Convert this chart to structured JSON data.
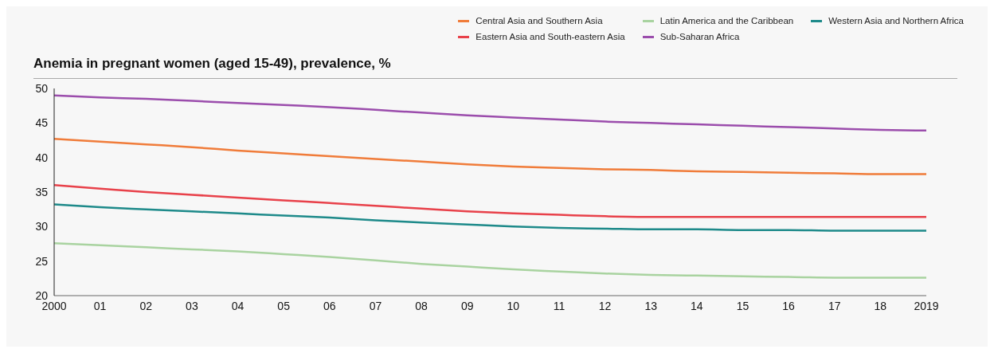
{
  "chart_data": {
    "type": "line",
    "title": "Anemia in pregnant women (aged 15-49), prevalence, %",
    "categories": [
      "2000",
      "01",
      "02",
      "03",
      "04",
      "05",
      "06",
      "07",
      "08",
      "09",
      "10",
      "11",
      "12",
      "13",
      "14",
      "15",
      "16",
      "17",
      "18",
      "2019"
    ],
    "series": [
      {
        "name": "Central Asia and Southern Asia",
        "color": "#f07c3a",
        "values": [
          42.7,
          42.3,
          41.9,
          41.5,
          41.0,
          40.6,
          40.2,
          39.8,
          39.4,
          39.0,
          38.7,
          38.5,
          38.3,
          38.2,
          38.0,
          37.9,
          37.8,
          37.7,
          37.6,
          37.6
        ]
      },
      {
        "name": "Eastern Asia and South-eastern Asia",
        "color": "#e8414a",
        "values": [
          36.0,
          35.5,
          35.0,
          34.6,
          34.2,
          33.8,
          33.4,
          33.0,
          32.6,
          32.2,
          31.9,
          31.7,
          31.5,
          31.4,
          31.4,
          31.4,
          31.4,
          31.4,
          31.4,
          31.4
        ]
      },
      {
        "name": "Latin America and the Caribbean",
        "color": "#a9d3a0",
        "values": [
          27.6,
          27.3,
          27.0,
          26.7,
          26.4,
          26.0,
          25.6,
          25.1,
          24.6,
          24.2,
          23.8,
          23.5,
          23.2,
          23.0,
          22.9,
          22.8,
          22.7,
          22.6,
          22.6,
          22.6
        ]
      },
      {
        "name": "Sub-Saharan Africa",
        "color": "#9b4dac",
        "values": [
          49.0,
          48.7,
          48.5,
          48.2,
          47.9,
          47.6,
          47.3,
          46.9,
          46.5,
          46.1,
          45.8,
          45.5,
          45.2,
          45.0,
          44.8,
          44.6,
          44.4,
          44.2,
          44.0,
          43.9
        ]
      },
      {
        "name": "Western Asia and Northern Africa",
        "color": "#1e8a8a",
        "values": [
          33.2,
          32.8,
          32.5,
          32.2,
          31.9,
          31.6,
          31.3,
          30.9,
          30.6,
          30.3,
          30.0,
          29.8,
          29.7,
          29.6,
          29.6,
          29.5,
          29.5,
          29.4,
          29.4,
          29.4
        ]
      }
    ],
    "ylim": [
      20,
      50
    ],
    "yticks": [
      20,
      25,
      30,
      35,
      40,
      45,
      50
    ],
    "grid": false,
    "legend": "top right",
    "marker": "none",
    "line_style": "solid"
  }
}
